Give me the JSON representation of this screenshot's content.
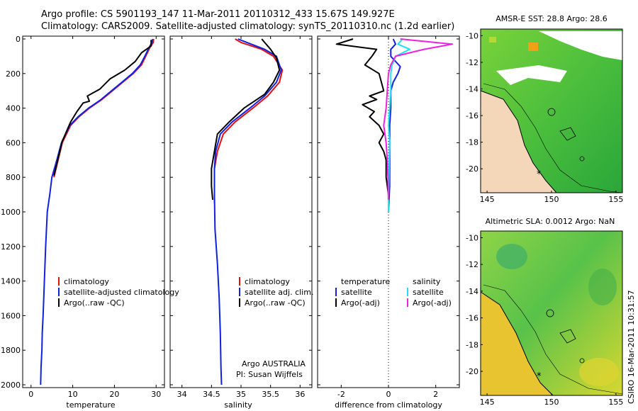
{
  "title": {
    "line1": "Argo profile: CS 5901193_147 11-Mar-2011 20110312_433 15.67S 149.927E",
    "line2": "Climatology: CARS2009. Satellite-adjusted climatology: synTS_20110310.nc (1.2d earlier)"
  },
  "colors": {
    "climatology": "#e01010",
    "satellite": "#1020e0",
    "argo": "#000000",
    "sal_sat": "#20e0f0",
    "sal_argo": "#f020e0"
  },
  "chart_data": [
    {
      "type": "line",
      "id": "temperature",
      "xlabel": "temperature",
      "ylabel": "",
      "xlim": [
        -2,
        32
      ],
      "ylim": [
        2000,
        0
      ],
      "xticks": [
        0,
        10,
        20,
        30
      ],
      "yticks": [
        0,
        200,
        400,
        600,
        800,
        1000,
        1200,
        1400,
        1600,
        1800,
        2000
      ],
      "legend": [
        "climatology",
        "satellite-adjusted climatology",
        "Argo(..raw -QC)"
      ],
      "series": [
        {
          "name": "climatology",
          "color": "#e01010",
          "x": [
            29.4,
            29.3,
            28.5,
            27.5,
            26.5,
            24.5,
            22.0,
            19.5,
            17.0,
            14.0,
            11.5,
            9.5,
            7.5,
            6.5,
            5.5
          ],
          "y": [
            0,
            20,
            50,
            100,
            150,
            200,
            250,
            300,
            350,
            400,
            450,
            500,
            600,
            700,
            800
          ]
        },
        {
          "name": "satellite-adjusted climatology",
          "color": "#1020e0",
          "x": [
            29.2,
            29.0,
            28.3,
            27.3,
            26.2,
            24.3,
            21.8,
            19.3,
            16.8,
            13.8,
            11.3,
            9.3,
            7.3,
            6.2,
            5.0,
            4.5,
            3.9,
            3.5,
            3.2,
            2.9,
            2.7,
            2.6,
            2.4,
            2.3
          ],
          "y": [
            0,
            20,
            50,
            100,
            150,
            200,
            250,
            300,
            350,
            400,
            450,
            500,
            600,
            700,
            800,
            900,
            1000,
            1200,
            1400,
            1600,
            1700,
            1800,
            1900,
            2000
          ]
        },
        {
          "name": "Argo(..raw -QC)",
          "color": "#000000",
          "x": [
            28.8,
            28.8,
            26.5,
            25.0,
            22.5,
            19.0,
            16.5,
            13.5,
            14.0,
            12.5,
            11.0,
            9.5,
            7.5,
            6.5,
            5.5
          ],
          "y": [
            5,
            40,
            80,
            130,
            180,
            230,
            290,
            330,
            360,
            370,
            420,
            480,
            590,
            690,
            790
          ]
        }
      ]
    },
    {
      "type": "line",
      "id": "salinity",
      "xlabel": "salinity",
      "xlim": [
        33.8,
        36.2
      ],
      "ylim": [
        2000,
        0
      ],
      "xticks": [
        34,
        34.5,
        35,
        35.5,
        36
      ],
      "legend": [
        "climatology",
        "satellite adj. clim.",
        "Argo(..raw -QC)"
      ],
      "annotation": [
        "Argo AUSTRALIA",
        "PI: Susan Wijffels"
      ],
      "series": [
        {
          "name": "climatology",
          "color": "#e01010",
          "x": [
            34.9,
            35.0,
            35.35,
            35.55,
            35.7,
            35.65,
            35.45,
            35.2,
            34.9,
            34.7,
            34.6,
            34.55,
            34.55,
            34.55
          ],
          "y": [
            0,
            20,
            60,
            100,
            180,
            250,
            330,
            400,
            480,
            550,
            650,
            750,
            850,
            950
          ]
        },
        {
          "name": "satellite adj. clim.",
          "color": "#1020e0",
          "x": [
            34.95,
            35.1,
            35.4,
            35.6,
            35.68,
            35.6,
            35.4,
            35.15,
            34.85,
            34.65,
            34.57,
            34.55,
            34.55,
            34.56,
            34.6,
            34.63,
            34.65,
            34.66,
            34.67
          ],
          "y": [
            0,
            20,
            60,
            100,
            180,
            250,
            330,
            400,
            480,
            550,
            650,
            750,
            900,
            1100,
            1300,
            1500,
            1700,
            1900,
            2000
          ]
        },
        {
          "name": "Argo(..raw -QC)",
          "color": "#000000",
          "x": [
            35.35,
            35.4,
            35.5,
            35.6,
            35.65,
            35.55,
            35.4,
            35.05,
            34.8,
            34.6,
            34.55,
            34.5,
            34.5,
            34.52
          ],
          "y": [
            0,
            20,
            60,
            110,
            180,
            250,
            320,
            400,
            480,
            550,
            650,
            750,
            850,
            930
          ]
        }
      ]
    },
    {
      "type": "line",
      "id": "difference",
      "xlabel": "difference from climatology",
      "xlim": [
        -3,
        3
      ],
      "ylim": [
        2000,
        0
      ],
      "xticks": [
        -2,
        0,
        2
      ],
      "legend_temperature": {
        "title": "temperature",
        "items": [
          "satellite",
          "Argo(-adj)"
        ]
      },
      "legend_salinity": {
        "title": "salinity",
        "items": [
          "satellite",
          "Argo(-adj)"
        ]
      },
      "series": [
        {
          "name": "temperature satellite",
          "color": "#1020e0",
          "x": [
            0.2,
            0.3,
            0.1,
            0.1,
            0.5,
            0.4,
            0.2,
            0.1,
            0.1,
            0.05,
            0.05,
            0.05,
            0.05,
            0.0
          ],
          "y": [
            0,
            30,
            60,
            100,
            160,
            200,
            250,
            300,
            400,
            500,
            600,
            700,
            850,
            1000
          ]
        },
        {
          "name": "temperature Argo(-adj)",
          "color": "#000000",
          "x": [
            -1.5,
            -2.2,
            -0.5,
            -0.7,
            -1.0,
            -0.4,
            -0.3,
            -0.2,
            -0.8,
            -0.5,
            -1.1,
            -0.6,
            -0.8,
            -0.4,
            -0.2,
            -0.4,
            -0.2,
            -0.1,
            -0.1,
            0.0,
            0.0
          ],
          "y": [
            0,
            30,
            60,
            100,
            150,
            200,
            250,
            300,
            330,
            350,
            380,
            420,
            450,
            500,
            550,
            600,
            650,
            700,
            800,
            900,
            930
          ]
        },
        {
          "name": "salinity satellite",
          "color": "#20e0f0",
          "x": [
            0.6,
            0.4,
            0.9,
            0.3,
            0.15,
            0.1,
            0.1,
            0.05,
            0.0,
            0.05,
            0.03,
            0.02,
            0.0,
            0.0
          ],
          "y": [
            0,
            30,
            60,
            100,
            150,
            200,
            300,
            400,
            500,
            600,
            700,
            800,
            900,
            1000
          ]
        },
        {
          "name": "salinity Argo(-adj)",
          "color": "#f020e0",
          "x": [
            0.5,
            2.7,
            1.5,
            0.3,
            0.1,
            0.0,
            -0.05,
            -0.1,
            -0.2,
            -0.1,
            -0.05,
            -0.02,
            -0.01,
            0.0
          ],
          "y": [
            0,
            30,
            60,
            100,
            150,
            200,
            300,
            400,
            500,
            600,
            700,
            800,
            880,
            930
          ]
        }
      ]
    },
    {
      "type": "heatmap",
      "id": "sst-map",
      "title": "AMSR-E SST: 28.8 Argo: 28.6",
      "xticks": [
        145,
        150,
        155
      ],
      "yticks": [
        -10,
        -12,
        -14,
        -16,
        -18,
        -20
      ],
      "xlim": [
        144.5,
        155.5
      ],
      "ylim": [
        -21.8,
        -9.5
      ]
    },
    {
      "type": "heatmap",
      "id": "sla-map",
      "title": "Altimetric SLA: 0.0012 Argo: NaN",
      "xticks": [
        145,
        150,
        155
      ],
      "yticks": [
        -10,
        -12,
        -14,
        -16,
        -18,
        -20
      ],
      "xlim": [
        144.5,
        155.5
      ],
      "ylim": [
        -21.8,
        -9.5
      ]
    }
  ],
  "footer": "CSIRO 16-Mar-2011 10:31:57"
}
